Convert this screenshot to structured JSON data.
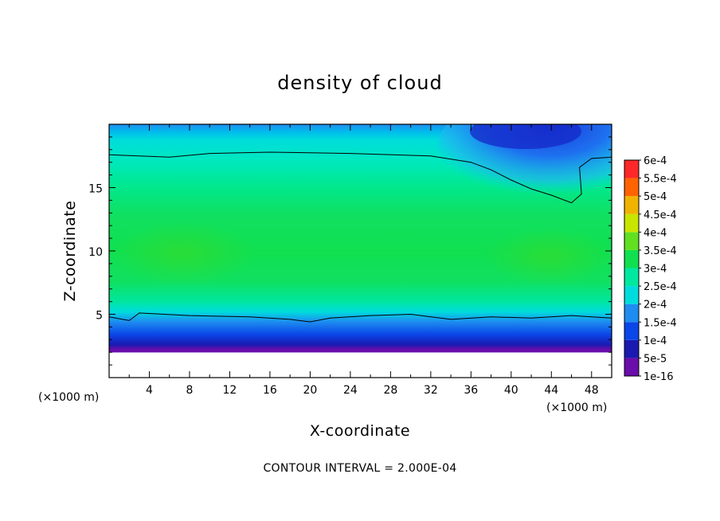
{
  "chart_data": {
    "type": "heatmap",
    "title": "density of cloud",
    "xlabel": "X-coordinate",
    "ylabel": "Z-coordinate",
    "x_unit_left": "(×1000 m)",
    "x_unit_right": "(×1000 m)",
    "xlim": [
      0,
      50
    ],
    "ylim": [
      0,
      20
    ],
    "x_ticks": [
      4,
      8,
      12,
      16,
      20,
      24,
      28,
      32,
      36,
      40,
      44,
      48
    ],
    "x_tick_labels": [
      "4",
      "8",
      "12",
      "16",
      "20",
      "24",
      "28",
      "32",
      "36",
      "40",
      "44",
      "48"
    ],
    "y_ticks": [
      5,
      10,
      15
    ],
    "y_tick_labels": [
      "5",
      "10",
      "15"
    ],
    "colorbar": {
      "levels": [
        1e-16,
        5e-05,
        0.0001,
        0.00015,
        0.0002,
        0.00025,
        0.0003,
        0.00035,
        0.0004,
        0.00045,
        0.0005,
        0.00055,
        0.0006
      ],
      "labels": [
        "1e-16",
        "5e-5",
        "1e-4",
        "1.5e-4",
        "2e-4",
        "2.5e-4",
        "3e-4",
        "3.5e-4",
        "4e-4",
        "4.5e-4",
        "5e-4",
        "5.5e-4",
        "6e-4"
      ],
      "colors": [
        "#6a0dab",
        "#1a1ab0",
        "#0a46e8",
        "#1e8cf0",
        "#00dcdc",
        "#00e8a0",
        "#10e050",
        "#60e020",
        "#c8e600",
        "#f0b400",
        "#ff6400",
        "#ff2828",
        "#ff8c8c"
      ]
    },
    "contour_lines_data": [
      {
        "level": 0.0002,
        "points": [
          [
            0,
            17.6
          ],
          [
            6,
            17.4
          ],
          [
            10,
            17.7
          ],
          [
            16,
            17.8
          ],
          [
            24,
            17.7
          ],
          [
            32,
            17.5
          ],
          [
            36,
            17.0
          ],
          [
            38,
            16.4
          ],
          [
            40,
            15.6
          ],
          [
            42,
            14.9
          ],
          [
            44,
            14.4
          ],
          [
            46,
            13.8
          ],
          [
            47,
            14.5
          ],
          [
            46.8,
            16.6
          ],
          [
            48,
            17.3
          ],
          [
            50,
            17.4
          ]
        ]
      },
      {
        "level": 0.0002,
        "points": [
          [
            0,
            4.8
          ],
          [
            2,
            4.5
          ],
          [
            3,
            5.1
          ],
          [
            8,
            4.9
          ],
          [
            14,
            4.8
          ],
          [
            18,
            4.6
          ],
          [
            20,
            4.4
          ],
          [
            22,
            4.7
          ],
          [
            26,
            4.9
          ],
          [
            30,
            5.0
          ],
          [
            34,
            4.6
          ],
          [
            38,
            4.8
          ],
          [
            42,
            4.7
          ],
          [
            46,
            4.9
          ],
          [
            50,
            4.7
          ]
        ]
      }
    ],
    "cloud_base_z": 2,
    "footer": "CONTOUR INTERVAL = 2.000E-04"
  }
}
